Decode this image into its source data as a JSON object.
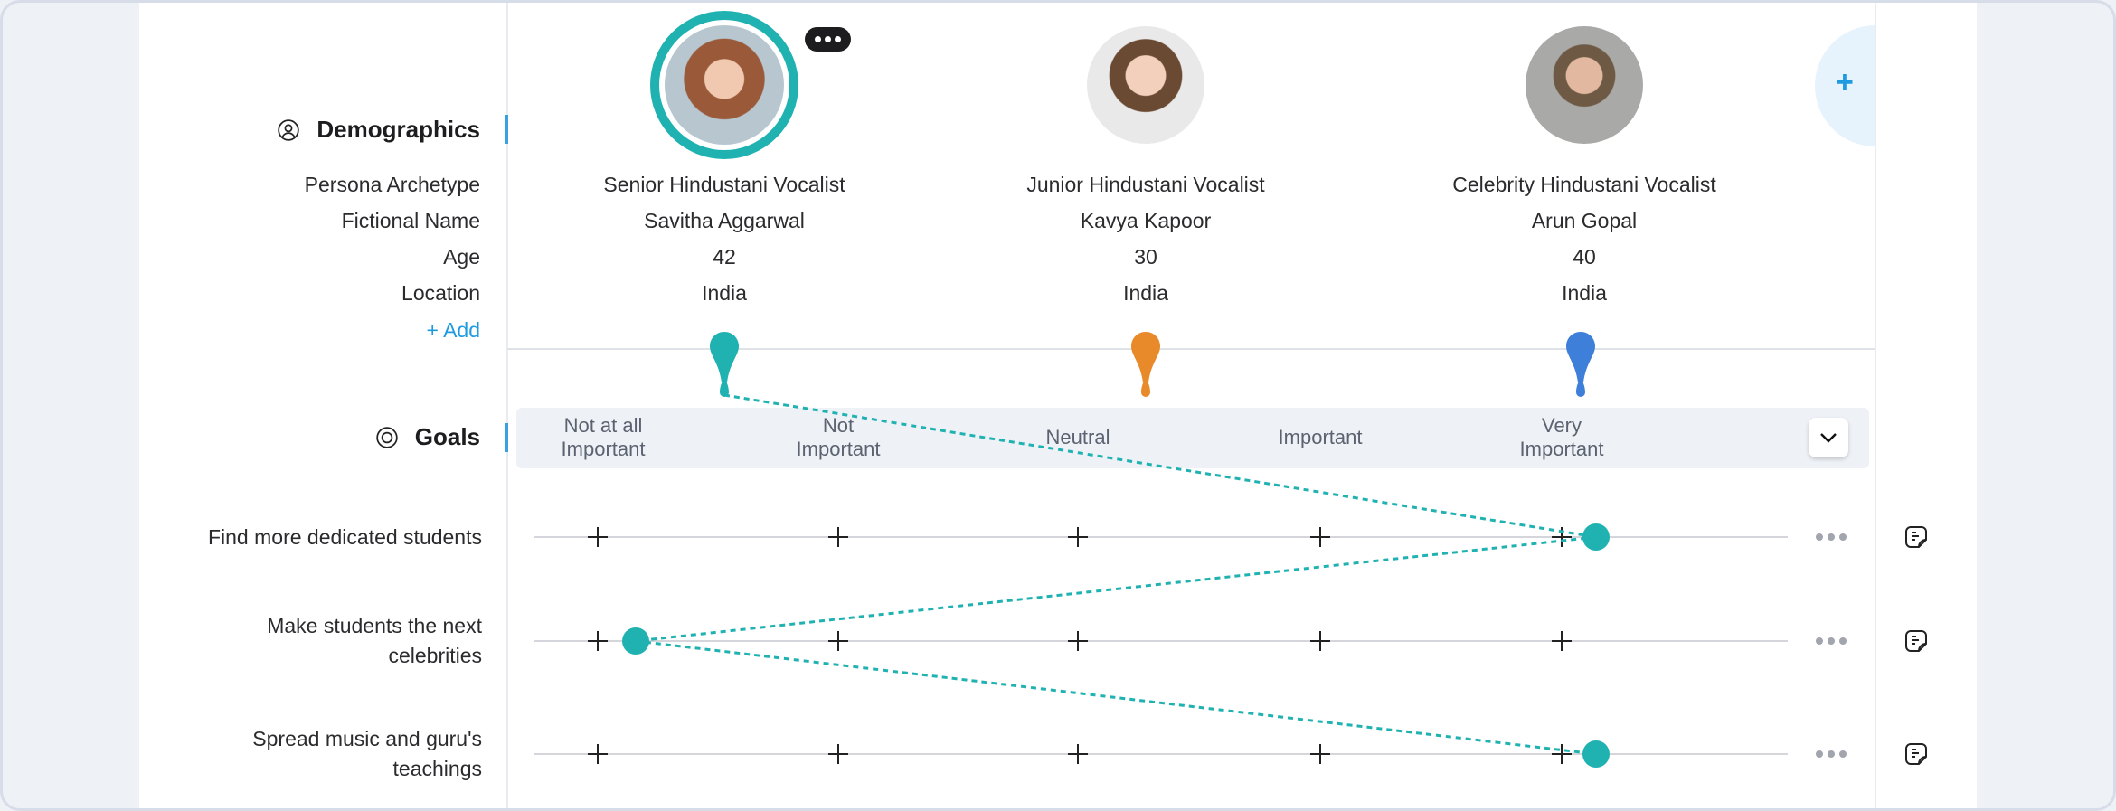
{
  "sections": {
    "demographics": "Demographics",
    "goals": "Goals"
  },
  "demographic_fields": [
    "Persona Archetype",
    "Fictional Name",
    "Age",
    "Location"
  ],
  "add_field_label": "+ Add",
  "personas": [
    {
      "archetype": "Senior Hindustani Vocalist",
      "name": "Savitha Aggarwal",
      "age": "42",
      "location": "India",
      "color": "#20b2b1",
      "selected": true
    },
    {
      "archetype": "Junior Hindustani Vocalist",
      "name": "Kavya Kapoor",
      "age": "30",
      "location": "India",
      "color": "#e8892a",
      "selected": false
    },
    {
      "archetype": "Celebrity Hindustani  Vocalist",
      "name": "Arun Gopal",
      "age": "40",
      "location": "India",
      "color": "#3d7fd9",
      "selected": false
    }
  ],
  "scale": [
    "Not at all Important",
    "Not Important",
    "Neutral",
    "Important",
    "Very Important"
  ],
  "scale_lines": [
    [
      "Not at all",
      "Important"
    ],
    [
      "Not",
      "Important"
    ],
    [
      "Neutral"
    ],
    [
      "Important"
    ],
    [
      "Very",
      "Important"
    ]
  ],
  "goals": [
    {
      "lines": [
        "Find more dedicated students"
      ],
      "rating": 4
    },
    {
      "lines": [
        "Make students the next",
        "celebrities"
      ],
      "rating": 0
    },
    {
      "lines": [
        "Spread music and guru's",
        "teachings"
      ],
      "rating": 4
    }
  ],
  "icons": {
    "demographics": "user-circle-icon",
    "goals": "target-icon",
    "more": "more-dots-icon",
    "note": "sticky-note-icon",
    "add_persona": "plus-icon",
    "dropdown": "chevron-down-icon"
  }
}
